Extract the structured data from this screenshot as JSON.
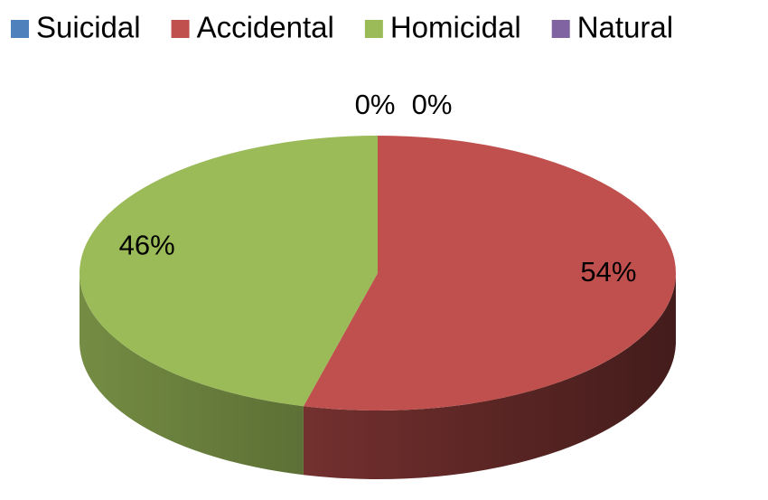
{
  "chart_data": {
    "type": "pie",
    "categories": [
      "Suicidal",
      "Accidental",
      "Homicidal",
      "Natural"
    ],
    "values": [
      0,
      54,
      46,
      0
    ],
    "value_labels": [
      "0%",
      "54%",
      "46%",
      "0%"
    ],
    "colors": [
      "#4f81bd",
      "#c0504d",
      "#9bbb59",
      "#8064a2"
    ],
    "legend": "top"
  }
}
